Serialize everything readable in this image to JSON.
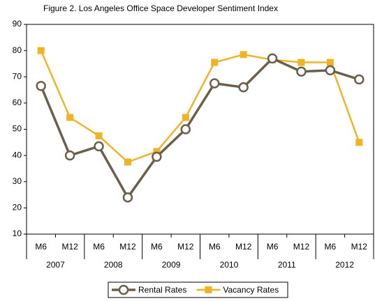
{
  "chart_data": {
    "type": "line",
    "title": "Figure 2. Los Angeles Office Space Developer Sentiment Index",
    "categories": [
      "M6",
      "M12",
      "M6",
      "M12",
      "M6",
      "M12",
      "M6",
      "M12",
      "M6",
      "M12",
      "M6",
      "M12"
    ],
    "groups": [
      "2007",
      "2008",
      "2009",
      "2010",
      "2011",
      "2012"
    ],
    "series": [
      {
        "name": "Rental Rates",
        "color": "#6b5e4c",
        "marker": "circle",
        "values": [
          66.5,
          40,
          43.5,
          24,
          39.5,
          50,
          67.5,
          66,
          77,
          72,
          72.5,
          69
        ]
      },
      {
        "name": "Vacancy Rates",
        "color": "#f0b323",
        "marker": "square",
        "values": [
          80,
          54.5,
          47.5,
          37.5,
          41.5,
          54.5,
          75.5,
          78.5,
          76.5,
          75.5,
          75.5,
          45
        ]
      }
    ],
    "ylim": [
      10,
      90
    ],
    "yticks": [
      10,
      20,
      30,
      40,
      50,
      60,
      70,
      80,
      90
    ],
    "grid": false,
    "legend": "bottom"
  }
}
